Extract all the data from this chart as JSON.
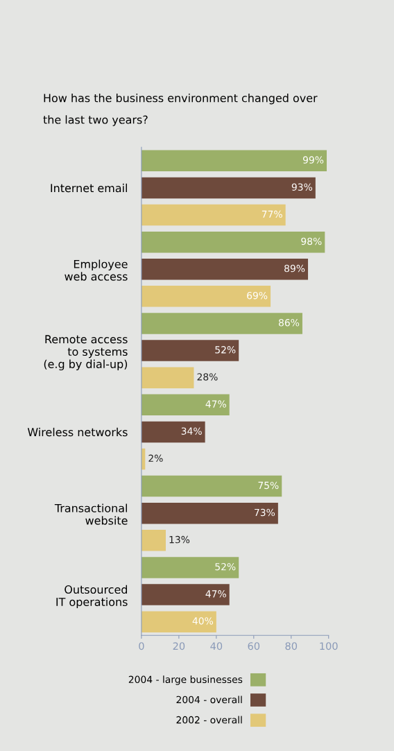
{
  "chart_data": {
    "type": "bar",
    "orientation": "horizontal",
    "title": "How has the business environment changed over\nthe last two years?",
    "categories": [
      "Internet email",
      "Employee\nweb access",
      "Remote access\nto systems\n(e.g by dial-up)",
      "Wireless networks",
      "Transactional\nwebsite",
      "Outsourced\nIT operations"
    ],
    "series": [
      {
        "name": "2004 - large businesses",
        "color": "#9bb068",
        "values": [
          99,
          98,
          86,
          47,
          75,
          52
        ],
        "value_labels": [
          "99%",
          "98%",
          "86%",
          "47%",
          "75%",
          "52%"
        ]
      },
      {
        "name": "2004 - overall",
        "color": "#6e4a3c",
        "values": [
          93,
          89,
          52,
          34,
          73,
          47
        ],
        "value_labels": [
          "93%",
          "89%",
          "52%",
          "34%",
          "73%",
          "47%"
        ]
      },
      {
        "name": "2002 - overall",
        "color": "#e2c878",
        "values": [
          77,
          69,
          28,
          2,
          13,
          40
        ],
        "value_labels": [
          "77%",
          "69%",
          "28%",
          "2%",
          "13%",
          "40%"
        ]
      }
    ],
    "xlim": [
      0,
      100
    ],
    "xticks": [
      0,
      20,
      40,
      60,
      80,
      100
    ],
    "grid": false,
    "legend": "bottom"
  }
}
